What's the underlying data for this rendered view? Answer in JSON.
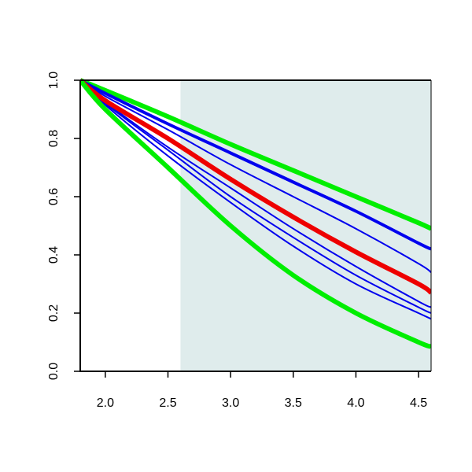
{
  "chart_data": {
    "type": "line",
    "title": "",
    "xlabel": "",
    "ylabel": "",
    "xlim": [
      1.8,
      4.6
    ],
    "ylim": [
      0.0,
      1.0
    ],
    "x_ticks": [
      "2.0",
      "2.5",
      "3.0",
      "3.5",
      "4.0",
      "4.5"
    ],
    "y_ticks": [
      "0.0",
      "0.2",
      "0.4",
      "0.6",
      "0.8",
      "1.0"
    ],
    "grid": false,
    "legend": "none",
    "shaded_region": {
      "x_from": 2.6,
      "x_to": 4.6,
      "color": "#dfecec"
    },
    "x": [
      1.8,
      2.0,
      2.5,
      3.0,
      3.5,
      4.0,
      4.5,
      4.6
    ],
    "series": [
      {
        "color": "#00ee00",
        "weight": "thick",
        "values": [
          1.0,
          0.965,
          0.875,
          0.78,
          0.69,
          0.6,
          0.51,
          0.49
        ]
      },
      {
        "color": "#0000ee",
        "weight": "thick",
        "values": [
          1.0,
          0.955,
          0.85,
          0.75,
          0.65,
          0.55,
          0.44,
          0.42
        ]
      },
      {
        "color": "#0000ee",
        "weight": "thin",
        "values": [
          1.0,
          0.945,
          0.83,
          0.71,
          0.6,
          0.49,
          0.37,
          0.34
        ]
      },
      {
        "color": "#ee0000",
        "weight": "thick",
        "values": [
          1.0,
          0.93,
          0.8,
          0.66,
          0.53,
          0.41,
          0.3,
          0.27
        ]
      },
      {
        "color": "#0000ee",
        "weight": "thin",
        "values": [
          1.0,
          0.925,
          0.77,
          0.63,
          0.49,
          0.36,
          0.24,
          0.22
        ]
      },
      {
        "color": "#0000ee",
        "weight": "thin",
        "values": [
          1.0,
          0.92,
          0.76,
          0.6,
          0.46,
          0.33,
          0.22,
          0.2
        ]
      },
      {
        "color": "#0000ee",
        "weight": "thin",
        "values": [
          1.0,
          0.915,
          0.74,
          0.58,
          0.43,
          0.3,
          0.2,
          0.18
        ]
      },
      {
        "color": "#00ee00",
        "weight": "thick",
        "values": [
          1.0,
          0.9,
          0.7,
          0.5,
          0.33,
          0.2,
          0.1,
          0.085
        ]
      }
    ]
  }
}
